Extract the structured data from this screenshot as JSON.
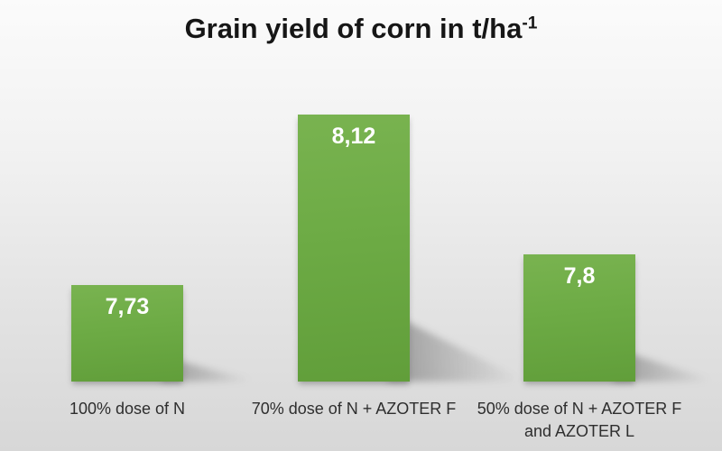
{
  "title": {
    "text": "Grain yield of corn in t/ha",
    "superscript": "-1"
  },
  "colors": {
    "bar_green_top": "#79b350",
    "bar_green_bottom": "#619e3a",
    "background_top": "#fbfbfb",
    "background_bottom": "#d7d7d7",
    "title_text": "#161616",
    "category_text": "#2e2e2e",
    "value_text": "#ffffff",
    "shadow": "rgba(70,70,70,0.45)"
  },
  "chart_data": {
    "type": "bar",
    "title": "Grain yield of corn in t/ha-1",
    "categories": [
      "100% dose of N",
      "70% dose of N + AZOTER F",
      "50% dose of N + AZOTER F and AZOTER L"
    ],
    "label_lines": [
      [
        "100% dose of N"
      ],
      [
        "70% dose of N + AZOTER F"
      ],
      [
        "50% dose of N + AZOTER F",
        "and AZOTER L"
      ]
    ],
    "values": [
      7.73,
      8.12,
      7.8
    ],
    "value_labels": [
      "7,73",
      "8,12",
      "7,8"
    ],
    "xlabel": "",
    "ylabel": "",
    "ylim": [
      7.51,
      8.32
    ],
    "grid": false,
    "axes_visible": false,
    "legend": null,
    "bar_count": 3
  }
}
